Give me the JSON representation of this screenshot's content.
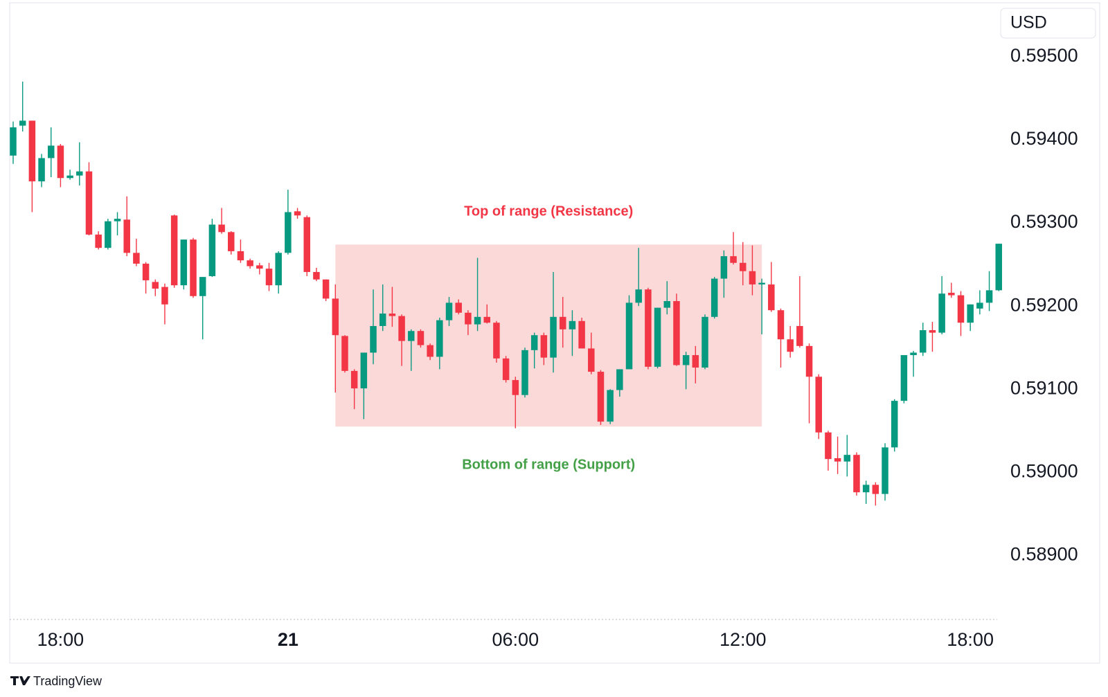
{
  "chart_data": {
    "type": "candlestick",
    "currency": "USD",
    "up_color": "#089981",
    "down_color": "#f23645",
    "categories": [
      null,
      null,
      null,
      null,
      null,
      "18:00",
      null,
      null,
      null,
      null,
      null,
      null,
      null,
      null,
      null,
      null,
      null,
      null,
      null,
      null,
      null,
      null,
      null,
      null,
      null,
      null,
      null,
      null,
      null,
      "21",
      null,
      null,
      null,
      null,
      null,
      null,
      null,
      null,
      null,
      null,
      null,
      null,
      null,
      null,
      null,
      null,
      null,
      null,
      null,
      null,
      null,
      null,
      null,
      "06:00",
      null,
      null,
      null,
      null,
      null,
      null,
      null,
      null,
      null,
      null,
      null,
      null,
      null,
      null,
      null,
      null,
      null,
      null,
      null,
      null,
      null,
      null,
      null,
      "12:00",
      null,
      null,
      null,
      null,
      null,
      null,
      null,
      null,
      null,
      null,
      null,
      null,
      null,
      null,
      null,
      null,
      null,
      null,
      null,
      null,
      null,
      null,
      null,
      "18:00",
      null,
      null,
      null
    ],
    "open": [
      0.59381,
      0.59417,
      0.59423,
      0.5935,
      0.59378,
      0.59393,
      0.59354,
      0.59357,
      0.59362,
      0.59286,
      0.5927,
      0.59302,
      0.59304,
      0.59264,
      0.59251,
      0.59229,
      0.59223,
      0.59309,
      0.59225,
      0.5928,
      0.59212,
      0.59236,
      0.59298,
      0.59289,
      0.59266,
      0.59255,
      0.59249,
      0.59245,
      0.59225,
      0.59264,
      0.59314,
      0.59307,
      0.59241,
      0.59232,
      0.59209,
      0.59164,
      0.59122,
      0.59101,
      0.59144,
      0.59176,
      0.59191,
      0.59188,
      0.59158,
      0.5917,
      0.59153,
      0.59139,
      0.59183,
      0.59204,
      0.59192,
      0.59178,
      0.59187,
      0.5918,
      0.59137,
      0.59111,
      0.59093,
      0.59147,
      0.59165,
      0.59138,
      0.59187,
      0.59172,
      0.59182,
      0.59149,
      0.59121,
      0.59061,
      0.59099,
      0.59124,
      0.59204,
      0.5922,
      0.59127,
      0.59198,
      0.59206,
      0.59129,
      0.59141,
      0.59126,
      0.59187,
      0.59233,
      0.5926,
      0.59252,
      0.59242,
      0.59226,
      0.59226,
      0.59195,
      0.5916,
      0.59176,
      0.59152,
      0.59115,
      0.59048,
      0.59017,
      0.59013,
      0.59021,
      0.58976,
      0.58985,
      0.58974,
      0.5903,
      0.59086,
      0.59141,
      0.59144,
      0.59171,
      0.59168,
      0.59216,
      0.59213,
      0.5918,
      0.59197,
      0.59204,
      0.59219
    ],
    "high": [
      0.59422,
      0.5947,
      0.59423,
      0.59383,
      0.59415,
      0.59395,
      0.59364,
      0.59397,
      0.59373,
      0.5929,
      0.59305,
      0.59313,
      0.59332,
      0.59281,
      0.59253,
      0.59232,
      0.59227,
      0.5931,
      0.5928,
      0.59282,
      0.59235,
      0.59305,
      0.59318,
      0.5929,
      0.5928,
      0.59257,
      0.59252,
      0.59252,
      0.59266,
      0.5934,
      0.59318,
      0.59309,
      0.59246,
      0.59232,
      0.59226,
      0.59165,
      0.59124,
      0.5914,
      0.5922,
      0.59226,
      0.59223,
      0.5919,
      0.59172,
      0.59172,
      0.59155,
      0.59186,
      0.59211,
      0.59208,
      0.59195,
      0.59258,
      0.59202,
      0.59182,
      0.5914,
      0.59115,
      0.5915,
      0.59168,
      0.59168,
      0.59241,
      0.59211,
      0.59195,
      0.59186,
      0.59168,
      0.59123,
      0.591,
      0.59124,
      0.59213,
      0.5927,
      0.59222,
      0.59198,
      0.5923,
      0.59215,
      0.59145,
      0.59152,
      0.5919,
      0.59235,
      0.59267,
      0.59289,
      0.59277,
      0.59273,
      0.59233,
      0.59253,
      0.59197,
      0.59176,
      0.59236,
      0.59155,
      0.59118,
      0.5905,
      0.59043,
      0.59045,
      0.59024,
      0.5899,
      0.58988,
      0.59035,
      0.59088,
      0.5914,
      0.59146,
      0.5918,
      0.59181,
      0.59236,
      0.59228,
      0.59218,
      0.59202,
      0.59219,
      0.59242,
      0.59275
    ],
    "low": [
      0.59371,
      0.5941,
      0.59313,
      0.59343,
      0.59355,
      0.59343,
      0.59352,
      0.59345,
      0.59285,
      0.59268,
      0.59268,
      0.59285,
      0.5926,
      0.59248,
      0.59215,
      0.59212,
      0.59178,
      0.59222,
      0.5922,
      0.5921,
      0.5916,
      0.59235,
      0.59287,
      0.59262,
      0.59252,
      0.59245,
      0.59238,
      0.59218,
      0.59215,
      0.59262,
      0.59305,
      0.59236,
      0.5923,
      0.59206,
      0.59096,
      0.5912,
      0.59076,
      0.59064,
      0.5913,
      0.5917,
      0.59175,
      0.59128,
      0.59122,
      0.5915,
      0.59135,
      0.59124,
      0.59176,
      0.5919,
      0.59165,
      0.5917,
      0.59179,
      0.59132,
      0.59108,
      0.59053,
      0.5909,
      0.59125,
      0.59129,
      0.5912,
      0.5915,
      0.5914,
      0.5915,
      0.59118,
      0.59057,
      0.59058,
      0.59091,
      0.59124,
      0.592,
      0.59124,
      0.59125,
      0.5919,
      0.59128,
      0.591,
      0.59107,
      0.59124,
      0.59185,
      0.5921,
      0.5925,
      0.59225,
      0.59213,
      0.59166,
      0.59193,
      0.59126,
      0.59138,
      0.5915,
      0.59059,
      0.5904,
      0.59002,
      0.58998,
      0.58995,
      0.58972,
      0.58962,
      0.5896,
      0.58966,
      0.59025,
      0.59083,
      0.59115,
      0.5914,
      0.59145,
      0.59166,
      0.5921,
      0.59164,
      0.5917,
      0.5919,
      0.59194,
      0.59218
    ],
    "close": [
      0.59415,
      0.59423,
      0.5935,
      0.59378,
      0.59393,
      0.59354,
      0.59357,
      0.59362,
      0.59286,
      0.5927,
      0.59302,
      0.59305,
      0.59264,
      0.59251,
      0.59231,
      0.59221,
      0.59202,
      0.59225,
      0.5928,
      0.59212,
      0.59235,
      0.59298,
      0.59289,
      0.59266,
      0.59255,
      0.59248,
      0.59245,
      0.59225,
      0.59264,
      0.59313,
      0.59309,
      0.59241,
      0.59232,
      0.59209,
      0.59165,
      0.59122,
      0.59101,
      0.59144,
      0.59176,
      0.59191,
      0.59188,
      0.59158,
      0.5917,
      0.59153,
      0.59139,
      0.59183,
      0.59204,
      0.59192,
      0.59178,
      0.59187,
      0.5918,
      0.59137,
      0.59111,
      0.59093,
      0.59147,
      0.59165,
      0.59138,
      0.59187,
      0.59172,
      0.59182,
      0.59149,
      0.59121,
      0.59061,
      0.59099,
      0.59124,
      0.59204,
      0.5922,
      0.59127,
      0.59198,
      0.59206,
      0.59129,
      0.59141,
      0.59126,
      0.59187,
      0.59233,
      0.5926,
      0.59252,
      0.59242,
      0.59226,
      0.59228,
      0.59195,
      0.5916,
      0.59145,
      0.59152,
      0.59115,
      0.59048,
      0.59016,
      0.59013,
      0.59021,
      0.58976,
      0.58985,
      0.58974,
      0.5903,
      0.59086,
      0.59141,
      0.59144,
      0.59171,
      0.59168,
      0.59215,
      0.59213,
      0.5918,
      0.59202,
      0.59204,
      0.59219,
      0.59275
    ],
    "ylim": [
      0.58823,
      0.59564
    ],
    "yticks": [
      {
        "value": 0.595,
        "label": "0.59500"
      },
      {
        "value": 0.594,
        "label": "0.59400"
      },
      {
        "value": 0.593,
        "label": "0.59300"
      },
      {
        "value": 0.592,
        "label": "0.59200"
      },
      {
        "value": 0.591,
        "label": "0.59100"
      },
      {
        "value": 0.59,
        "label": "0.59000"
      },
      {
        "value": 0.589,
        "label": "0.58900"
      }
    ],
    "range": {
      "top": 0.59274,
      "bottom": 0.59055,
      "from_index": 34,
      "to_index": 79,
      "color": "#fbd9d8"
    },
    "annotations": [
      {
        "text": "Top of range (Resistance)",
        "color": "#f23645"
      },
      {
        "text": "Bottom of range (Support)",
        "color": "#43a047"
      }
    ]
  },
  "branding": "TradingView"
}
